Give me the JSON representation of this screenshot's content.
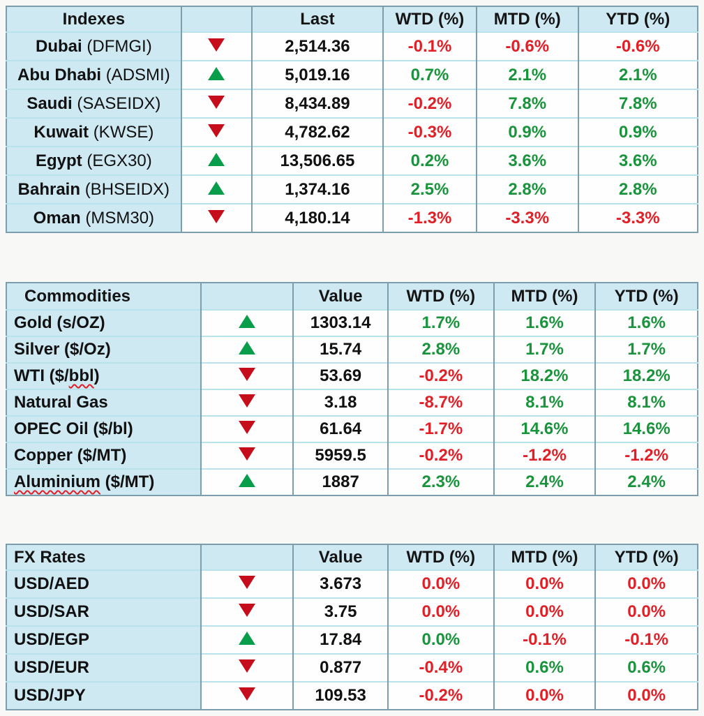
{
  "pct_headers": [
    "WTD (%)",
    "MTD (%)",
    "YTD (%)"
  ],
  "colors": {
    "positive": "#1a943c",
    "negative": "#e01f27",
    "triangle_up": "#089d4a",
    "triangle_down": "#c60d1c",
    "header_bg": "#cfe9f3"
  },
  "tables": [
    {
      "title": "Indexes",
      "value_header": "Last",
      "rows": [
        {
          "name_parts": [
            {
              "t": "Dubai ",
              "bold": true
            },
            {
              "t": "(DFMGI)",
              "bold": false
            }
          ],
          "direction": "down",
          "value": "2,514.36",
          "pcts": [
            {
              "v": "-0.1%",
              "c": "dn"
            },
            {
              "v": "-0.6%",
              "c": "dn"
            },
            {
              "v": "-0.6%",
              "c": "dn"
            }
          ]
        },
        {
          "name_parts": [
            {
              "t": "Abu Dhabi ",
              "bold": true
            },
            {
              "t": "(ADSMI)",
              "bold": false
            }
          ],
          "direction": "up",
          "value": "5,019.16",
          "pcts": [
            {
              "v": "0.7%",
              "c": "up"
            },
            {
              "v": "2.1%",
              "c": "up"
            },
            {
              "v": "2.1%",
              "c": "up"
            }
          ]
        },
        {
          "name_parts": [
            {
              "t": "Saudi ",
              "bold": true
            },
            {
              "t": "(SASEIDX)",
              "bold": false
            }
          ],
          "direction": "down",
          "value": "8,434.89",
          "pcts": [
            {
              "v": "-0.2%",
              "c": "dn"
            },
            {
              "v": "7.8%",
              "c": "up"
            },
            {
              "v": "7.8%",
              "c": "up"
            }
          ]
        },
        {
          "name_parts": [
            {
              "t": "Kuwait ",
              "bold": true
            },
            {
              "t": "(KWSE)",
              "bold": false
            }
          ],
          "direction": "down",
          "value": "4,782.62",
          "pcts": [
            {
              "v": "-0.3%",
              "c": "dn"
            },
            {
              "v": "0.9%",
              "c": "up"
            },
            {
              "v": "0.9%",
              "c": "up"
            }
          ]
        },
        {
          "name_parts": [
            {
              "t": "Egypt ",
              "bold": true
            },
            {
              "t": "(EGX30)",
              "bold": false
            }
          ],
          "direction": "up",
          "value": "13,506.65",
          "pcts": [
            {
              "v": "0.2%",
              "c": "up"
            },
            {
              "v": "3.6%",
              "c": "up"
            },
            {
              "v": "3.6%",
              "c": "up"
            }
          ]
        },
        {
          "name_parts": [
            {
              "t": "Bahrain ",
              "bold": true
            },
            {
              "t": "(BHSEIDX)",
              "bold": false
            }
          ],
          "direction": "up",
          "value": "1,374.16",
          "pcts": [
            {
              "v": "2.5%",
              "c": "up"
            },
            {
              "v": "2.8%",
              "c": "up"
            },
            {
              "v": "2.8%",
              "c": "up"
            }
          ]
        },
        {
          "name_parts": [
            {
              "t": "Oman ",
              "bold": true
            },
            {
              "t": "(MSM30)",
              "bold": false
            }
          ],
          "direction": "down",
          "value": "4,180.14",
          "pcts": [
            {
              "v": "-1.3%",
              "c": "dn"
            },
            {
              "v": "-3.3%",
              "c": "dn"
            },
            {
              "v": "-3.3%",
              "c": "dn"
            }
          ]
        }
      ]
    },
    {
      "title": "Commodities",
      "value_header": "Value",
      "rows": [
        {
          "name_parts": [
            {
              "t": "Gold (s/OZ)",
              "bold": true
            }
          ],
          "direction": "up",
          "value": "1303.14",
          "pcts": [
            {
              "v": "1.7%",
              "c": "up"
            },
            {
              "v": "1.6%",
              "c": "up"
            },
            {
              "v": "1.6%",
              "c": "up"
            }
          ]
        },
        {
          "name_parts": [
            {
              "t": "Silver ($/Oz)",
              "bold": true
            }
          ],
          "direction": "up",
          "value": "15.74",
          "pcts": [
            {
              "v": "2.8%",
              "c": "up"
            },
            {
              "v": "1.7%",
              "c": "up"
            },
            {
              "v": "1.7%",
              "c": "up"
            }
          ]
        },
        {
          "name_parts": [
            {
              "t": "WTI ($/",
              "bold": true
            },
            {
              "t": "bbl",
              "bold": true,
              "squiggle": true
            },
            {
              "t": ")",
              "bold": true
            }
          ],
          "direction": "down",
          "value": "53.69",
          "pcts": [
            {
              "v": "-0.2%",
              "c": "dn"
            },
            {
              "v": "18.2%",
              "c": "up"
            },
            {
              "v": "18.2%",
              "c": "up"
            }
          ]
        },
        {
          "name_parts": [
            {
              "t": "Natural Gas",
              "bold": true
            }
          ],
          "direction": "down",
          "value": "3.18",
          "pcts": [
            {
              "v": "-8.7%",
              "c": "dn"
            },
            {
              "v": "8.1%",
              "c": "up"
            },
            {
              "v": "8.1%",
              "c": "up"
            }
          ]
        },
        {
          "name_parts": [
            {
              "t": "OPEC Oil ($/bl)",
              "bold": true
            }
          ],
          "direction": "down",
          "value": "61.64",
          "pcts": [
            {
              "v": "-1.7%",
              "c": "dn"
            },
            {
              "v": "14.6%",
              "c": "up"
            },
            {
              "v": "14.6%",
              "c": "up"
            }
          ]
        },
        {
          "name_parts": [
            {
              "t": "Copper ($/MT)",
              "bold": true
            }
          ],
          "direction": "down",
          "value": "5959.5",
          "pcts": [
            {
              "v": "-0.2%",
              "c": "dn"
            },
            {
              "v": "-1.2%",
              "c": "dn"
            },
            {
              "v": "-1.2%",
              "c": "dn"
            }
          ]
        },
        {
          "name_parts": [
            {
              "t": "Aluminium",
              "bold": true,
              "squiggle": true
            },
            {
              "t": " ($/MT)",
              "bold": true
            }
          ],
          "direction": "up",
          "value": "1887",
          "pcts": [
            {
              "v": "2.3%",
              "c": "up"
            },
            {
              "v": "2.4%",
              "c": "up"
            },
            {
              "v": "2.4%",
              "c": "up"
            }
          ]
        }
      ]
    },
    {
      "title": "FX Rates",
      "value_header": "Value",
      "rows": [
        {
          "name_parts": [
            {
              "t": "USD/AED",
              "bold": true
            }
          ],
          "direction": "down",
          "value": "3.673",
          "pcts": [
            {
              "v": "0.0%",
              "c": "dn"
            },
            {
              "v": "0.0%",
              "c": "dn"
            },
            {
              "v": "0.0%",
              "c": "dn"
            }
          ]
        },
        {
          "name_parts": [
            {
              "t": "USD/SAR",
              "bold": true
            }
          ],
          "direction": "down",
          "value": "3.75",
          "pcts": [
            {
              "v": "0.0%",
              "c": "dn"
            },
            {
              "v": "0.0%",
              "c": "dn"
            },
            {
              "v": "0.0%",
              "c": "dn"
            }
          ]
        },
        {
          "name_parts": [
            {
              "t": "USD/EGP",
              "bold": true
            }
          ],
          "direction": "up",
          "value": "17.84",
          "pcts": [
            {
              "v": "0.0%",
              "c": "up"
            },
            {
              "v": "-0.1%",
              "c": "dn"
            },
            {
              "v": "-0.1%",
              "c": "dn"
            }
          ]
        },
        {
          "name_parts": [
            {
              "t": "USD/EUR",
              "bold": true
            }
          ],
          "direction": "down",
          "value": "0.877",
          "pcts": [
            {
              "v": "-0.4%",
              "c": "dn"
            },
            {
              "v": "0.6%",
              "c": "up"
            },
            {
              "v": "0.6%",
              "c": "up"
            }
          ]
        },
        {
          "name_parts": [
            {
              "t": "USD/JPY",
              "bold": true
            }
          ],
          "direction": "down",
          "value": "109.53",
          "pcts": [
            {
              "v": "-0.2%",
              "c": "dn"
            },
            {
              "v": "0.0%",
              "c": "dn"
            },
            {
              "v": "0.0%",
              "c": "dn"
            }
          ]
        }
      ]
    }
  ]
}
